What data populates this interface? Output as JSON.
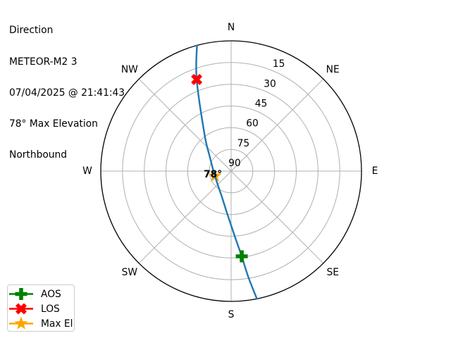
{
  "header": {
    "lines": [
      "Direction",
      "METEOR-M2 3",
      "07/04/2025 @ 21:41:43",
      "78° Max Elevation",
      "Northbound"
    ]
  },
  "chart_data": {
    "type": "polar_sky_track",
    "title": "Direction",
    "satellite": "METEOR-M2 3",
    "timestamp": "07/04/2025 @ 21:41:43",
    "max_elevation_label": "78° Max Elevation",
    "heading": "Northbound",
    "compass_labels": [
      "N",
      "NE",
      "E",
      "SE",
      "S",
      "SW",
      "W",
      "NW"
    ],
    "elevation_ticks": [
      15,
      30,
      45,
      60,
      75,
      90
    ],
    "r_axis": {
      "center_value": 90,
      "edge_value": 0,
      "unit": "degrees elevation"
    },
    "grid": true,
    "colors": {
      "grid": "#b0b0b0",
      "outline": "#000000",
      "track": "#1f77b4",
      "aos": "#008000",
      "los": "#ff0000",
      "max_el": "#ffa500"
    },
    "track": {
      "name": "satellite-track",
      "color": "#1f77b4",
      "width": 2.4,
      "points_az_el": [
        [
          344.8,
          0
        ],
        [
          339.4,
          22.4
        ],
        [
          324.4,
          58.3
        ],
        [
          306.6,
          71.2
        ],
        [
          253.1,
          78.3
        ],
        [
          199.4,
          70.9
        ],
        [
          184.6,
          59.7
        ],
        [
          176.4,
          43.7
        ],
        [
          172.9,
          30.7
        ],
        [
          170.9,
          16.6
        ],
        [
          168.6,
          0
        ]
      ]
    },
    "markers": [
      {
        "id": "max-el",
        "shape": "star",
        "color": "#ffa500",
        "az": 253.1,
        "el": 78.3,
        "annotation": "78°",
        "z": "below-track"
      },
      {
        "id": "aos",
        "shape": "thick-plus",
        "color": "#008000",
        "az": 172.9,
        "el": 30.7,
        "z": "above-track"
      },
      {
        "id": "los",
        "shape": "thick-x",
        "color": "#ff0000",
        "az": 339.4,
        "el": 22.4,
        "z": "above-track"
      }
    ]
  },
  "legend": {
    "items": [
      {
        "label": "AOS",
        "shape": "thick-plus",
        "color": "#008000"
      },
      {
        "label": "LOS",
        "shape": "thick-x",
        "color": "#ff0000"
      },
      {
        "label": "Max El",
        "shape": "star",
        "color": "#ffa500"
      }
    ]
  }
}
